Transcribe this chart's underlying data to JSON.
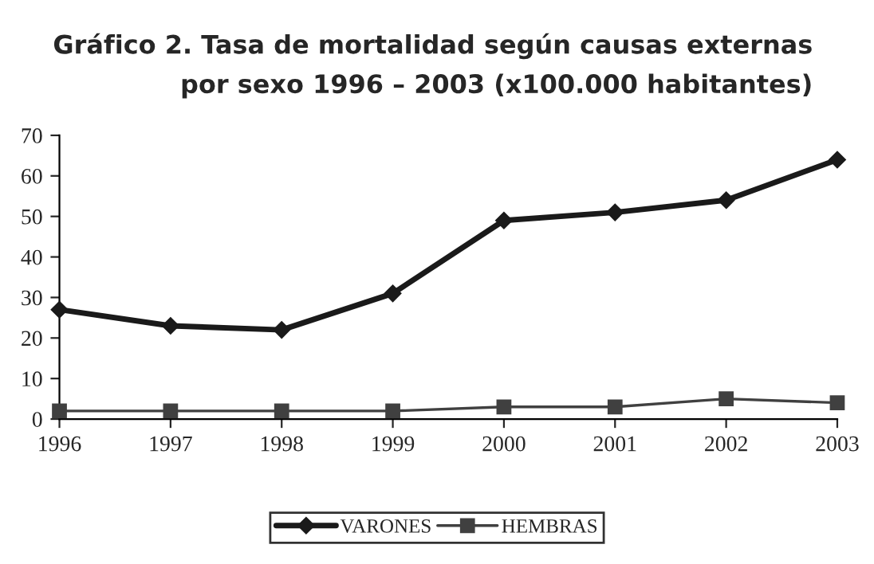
{
  "chart_data": {
    "type": "line",
    "title": "Gráfico 2. Tasa de mortalidad según causas externas",
    "subtitle": "por sexo 1996 – 2003 (x100.000 habitantes)",
    "x": [
      1996,
      1997,
      1998,
      1999,
      2000,
      2001,
      2002,
      2003
    ],
    "series": [
      {
        "name": "VARONES",
        "color": "#1a1a1a",
        "marker": "diamond",
        "values": [
          27,
          23,
          22,
          31,
          49,
          51,
          54,
          64
        ]
      },
      {
        "name": "HEMBRAS",
        "color": "#404040",
        "marker": "square",
        "values": [
          2,
          2,
          2,
          2,
          3,
          3,
          5,
          4
        ]
      }
    ],
    "xlim": [
      1996,
      2003
    ],
    "xticks": [
      1996,
      1997,
      1998,
      1999,
      2000,
      2001,
      2002,
      2003
    ],
    "ylim": [
      0,
      70
    ],
    "yticks": [
      0,
      10,
      20,
      30,
      40,
      50,
      60,
      70
    ],
    "grid": false,
    "legend": "bottom",
    "line_style": "solid"
  }
}
